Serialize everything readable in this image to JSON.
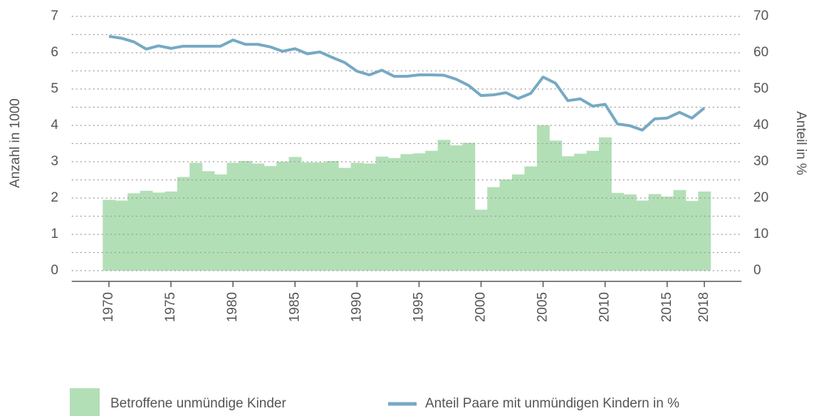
{
  "chart_data": {
    "type": "bar_line",
    "x": [
      1970,
      1971,
      1972,
      1973,
      1974,
      1975,
      1976,
      1977,
      1978,
      1979,
      1980,
      1981,
      1982,
      1983,
      1984,
      1985,
      1986,
      1987,
      1988,
      1989,
      1990,
      1991,
      1992,
      1993,
      1994,
      1995,
      1996,
      1997,
      1998,
      1999,
      2000,
      2001,
      2002,
      2003,
      2004,
      2005,
      2006,
      2007,
      2008,
      2009,
      2010,
      2011,
      2012,
      2013,
      2014,
      2015,
      2016,
      2017,
      2018
    ],
    "series": [
      {
        "name": "Betroffene unmündige Kinder",
        "type": "bar",
        "color": "#b3dfb7",
        "values": [
          1.95,
          1.93,
          2.13,
          2.2,
          2.15,
          2.18,
          2.58,
          2.97,
          2.74,
          2.65,
          2.97,
          3.02,
          2.95,
          2.88,
          3.0,
          3.13,
          2.98,
          2.98,
          3.02,
          2.83,
          2.97,
          2.95,
          3.14,
          3.1,
          3.21,
          3.23,
          3.3,
          3.6,
          3.45,
          3.52,
          1.68,
          2.3,
          2.51,
          2.65,
          2.87,
          4.0,
          3.58,
          3.15,
          3.22,
          3.3,
          3.67,
          2.14,
          2.1,
          1.93,
          2.11,
          2.04,
          2.22,
          1.92,
          2.18
        ]
      },
      {
        "name": "Anteil Paare mit unmündigen Kindern in %",
        "type": "line",
        "axis": "y2",
        "color": "#76a9c4",
        "values": [
          64.5,
          64,
          63,
          61,
          61.9,
          61.2,
          61.8,
          61.8,
          61.8,
          61.8,
          63.5,
          62.3,
          62.3,
          61.6,
          60.4,
          61.1,
          59.7,
          60.2,
          58.7,
          57.3,
          54.9,
          53.9,
          55.2,
          53.5,
          53.5,
          53.9,
          53.9,
          53.8,
          52.7,
          51,
          48.2,
          48.4,
          49,
          47.4,
          48.8,
          53.3,
          51.6,
          46.8,
          47.3,
          45.3,
          45.8,
          40.4,
          39.9,
          38.7,
          41.8,
          42,
          43.6,
          42,
          44.8
        ]
      }
    ],
    "y_label": "Anzahl in 1000",
    "y2_label": "Anteil in %",
    "xlim": [
      1967,
      2021
    ],
    "xticks": [
      1970,
      1975,
      1980,
      1985,
      1990,
      1995,
      2000,
      2005,
      2010,
      2015,
      2018
    ],
    "ylim": [
      0,
      7
    ],
    "yticks": [
      0,
      1,
      2,
      3,
      4,
      5,
      6,
      7
    ],
    "y_minor_ticks": [
      0.5,
      1.5,
      2.5,
      3.5,
      4.5,
      5.5,
      6.5
    ],
    "y2lim": [
      0,
      70
    ],
    "y2ticks": [
      0,
      10,
      20,
      30,
      40,
      50,
      60,
      70
    ],
    "grid": true,
    "legend": "bottom"
  }
}
